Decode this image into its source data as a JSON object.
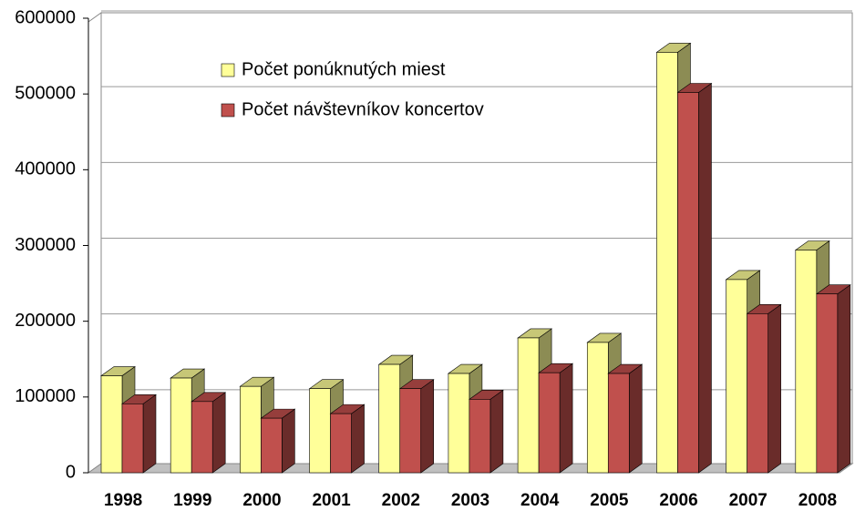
{
  "chart_data": {
    "type": "bar3d",
    "categories": [
      "1998",
      "1999",
      "2000",
      "2001",
      "2002",
      "2003",
      "2004",
      "2005",
      "2006",
      "2007",
      "2008"
    ],
    "series": [
      {
        "name": "Počet ponúknutých miest",
        "color": "#ffff99",
        "values": [
          128000,
          125000,
          114000,
          111000,
          143000,
          131000,
          178000,
          172000,
          555000,
          255000,
          294000
        ]
      },
      {
        "name": "Počet návštevníkov koncertov",
        "color": "#c0504d",
        "values": [
          91000,
          94000,
          72000,
          78000,
          111000,
          97000,
          132000,
          131000,
          502000,
          210000,
          236000
        ]
      }
    ],
    "ylim": [
      0,
      600000
    ],
    "yticks": [
      0,
      100000,
      200000,
      300000,
      400000,
      500000,
      600000
    ],
    "grid": true,
    "legend": "top-left"
  }
}
